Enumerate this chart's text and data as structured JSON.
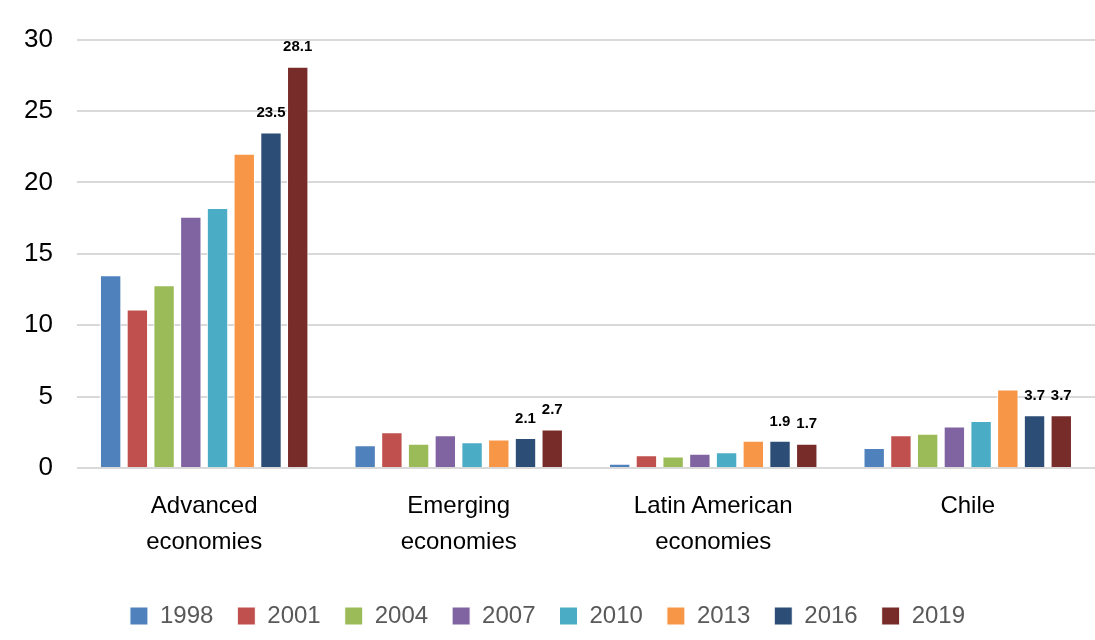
{
  "chart_data": {
    "type": "bar",
    "categories": [
      "Advanced economies",
      "Emerging economies",
      "Latin American economies",
      "Chile"
    ],
    "series": [
      {
        "name": "1998",
        "color": "#4f81bd",
        "values": [
          13.5,
          1.6,
          0.3,
          1.4
        ]
      },
      {
        "name": "2001",
        "color": "#c0504d",
        "values": [
          11.1,
          2.5,
          0.9,
          2.3
        ]
      },
      {
        "name": "2004",
        "color": "#9bbb59",
        "values": [
          12.8,
          1.7,
          0.8,
          2.4
        ]
      },
      {
        "name": "2007",
        "color": "#8064a2",
        "values": [
          17.6,
          2.3,
          1.0,
          2.9
        ]
      },
      {
        "name": "2010",
        "color": "#4bacc6",
        "values": [
          18.2,
          1.8,
          1.1,
          3.3
        ]
      },
      {
        "name": "2013",
        "color": "#f79646",
        "values": [
          22.0,
          2.0,
          1.9,
          5.5
        ]
      },
      {
        "name": "2016",
        "color": "#2c4d75",
        "values": [
          23.5,
          2.1,
          1.9,
          3.7
        ],
        "value_labels": [
          "23.5",
          "2.1",
          "1.9",
          "3.7"
        ]
      },
      {
        "name": "2019",
        "color": "#772c2a",
        "values": [
          28.1,
          2.7,
          1.7,
          3.7
        ],
        "value_labels": [
          "28.1",
          "2.7",
          "1.7",
          "3.7"
        ]
      }
    ],
    "ylim": [
      0,
      30
    ],
    "yticks": [
      0,
      5,
      10,
      15,
      20,
      25,
      30
    ],
    "grid": "y",
    "legend": "bottom"
  }
}
